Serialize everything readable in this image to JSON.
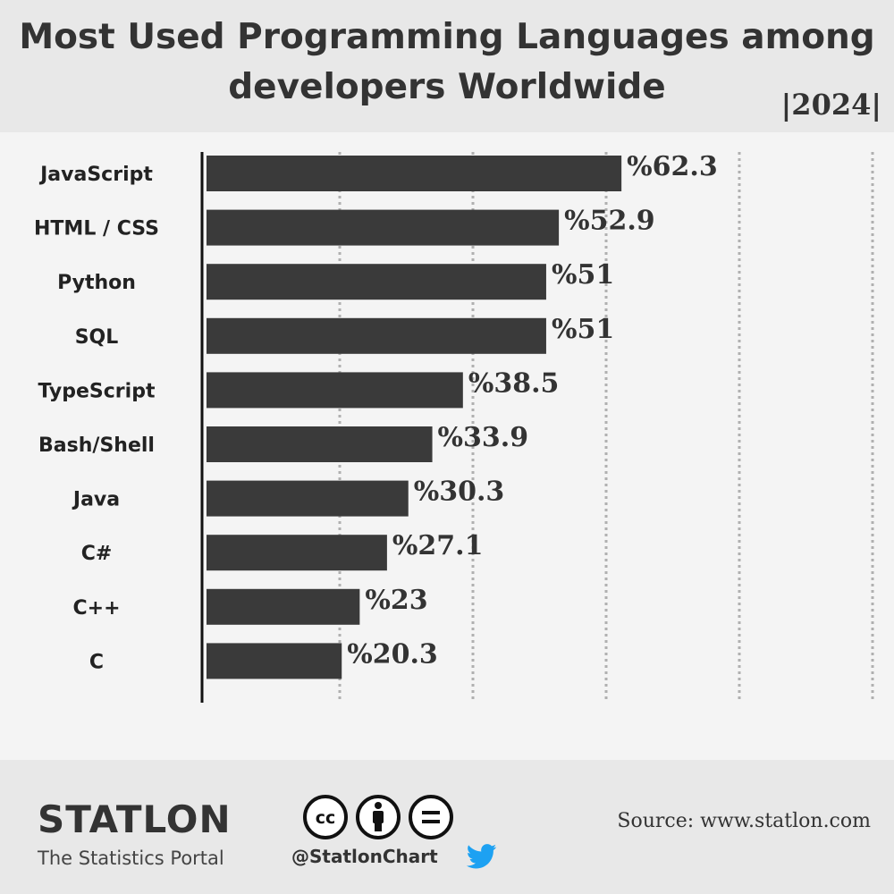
{
  "header": {
    "title": "Most Used Programming Languages among developers Worldwide",
    "year": "|2024|"
  },
  "chart_data": {
    "type": "bar",
    "orientation": "horizontal",
    "title": "Most Used Programming Languages among developers Worldwide",
    "categories": [
      "JavaScript",
      "HTML / CSS",
      "Python",
      "SQL",
      "TypeScript",
      "Bash/Shell",
      "Java",
      "C#",
      "C++",
      "C"
    ],
    "values": [
      62.3,
      52.9,
      51,
      51,
      38.5,
      33.9,
      30.3,
      27.1,
      23,
      20.3
    ],
    "labels": [
      "%62.3",
      "%52.9",
      "%51",
      "%51",
      "%38.5",
      "%33.9",
      "%30.3",
      "%27.1",
      "%23",
      "%20.3"
    ],
    "xlim": [
      0,
      100
    ],
    "grid": true,
    "bar_color": "#3a3a3a"
  },
  "footer": {
    "brand": "STATLON",
    "tagline": "The Statistics Portal",
    "handle": "@StatlonChart",
    "source": "Source: www.statlon.com",
    "icons": [
      "cc-icon",
      "attribution-icon",
      "no-derivatives-icon",
      "twitter-icon"
    ],
    "twitter_color": "#1da1f2"
  }
}
